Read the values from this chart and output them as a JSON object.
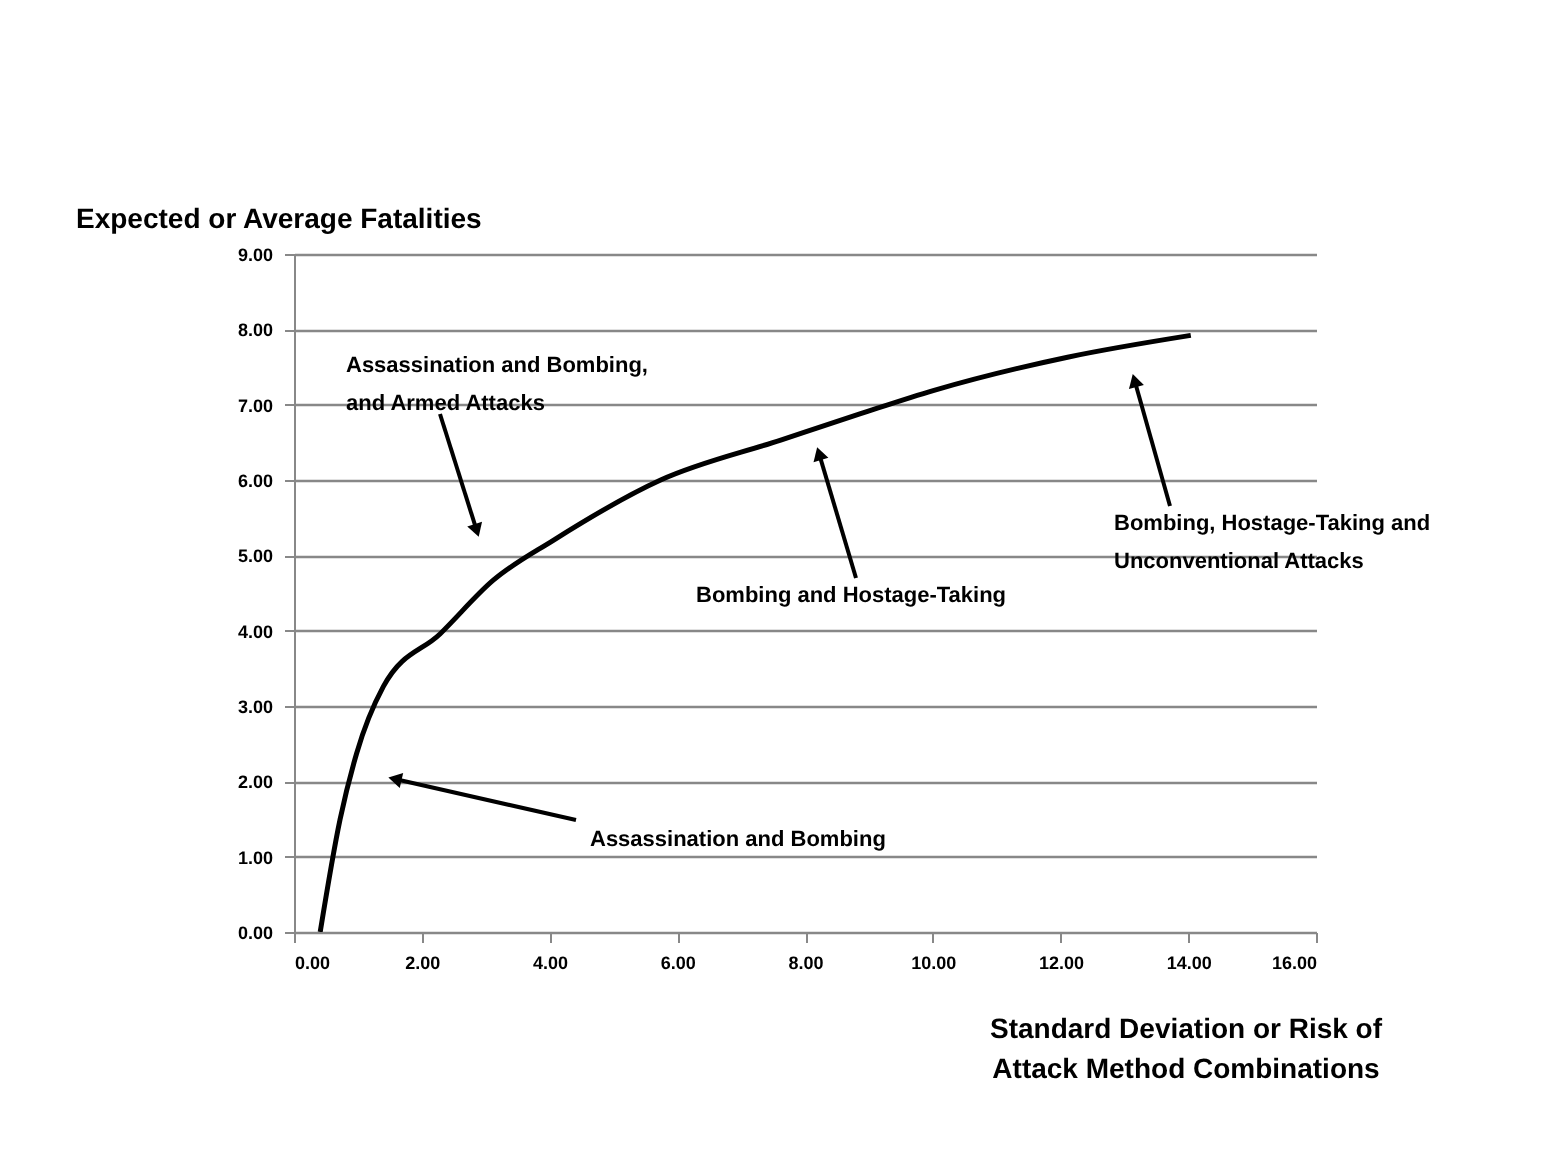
{
  "chart_data": {
    "type": "line",
    "ylabel": "Expected or Average Fatalities",
    "xlabel": "Standard Deviation or Risk of\nAttack Method Combinations",
    "x": [
      0.41,
      0.72,
      0.98,
      1.4,
      2.29,
      3.12,
      4.06,
      5.74,
      7.62,
      8.87,
      10.02,
      12.11,
      14.04
    ],
    "values": [
      0,
      1.49,
      2.37,
      3.26,
      3.96,
      4.67,
      5.2,
      6.0,
      6.53,
      6.88,
      7.19,
      7.63,
      7.92
    ],
    "color": "#000000",
    "xlim": [
      0,
      16
    ],
    "ylim": [
      0,
      9
    ],
    "xticks": [
      {
        "value": 0,
        "label": "0.00"
      },
      {
        "value": 2,
        "label": "2.00"
      },
      {
        "value": 4,
        "label": "4.00"
      },
      {
        "value": 6,
        "label": "6.00"
      },
      {
        "value": 8,
        "label": "8.00"
      },
      {
        "value": 10,
        "label": "10.00"
      },
      {
        "value": 12,
        "label": "12.00"
      },
      {
        "value": 14,
        "label": "14.00"
      },
      {
        "value": 16,
        "label": "16.00"
      }
    ],
    "yticks": [
      {
        "value": 0,
        "label": "0.00"
      },
      {
        "value": 1,
        "label": "1.00"
      },
      {
        "value": 2,
        "label": "2.00"
      },
      {
        "value": 3,
        "label": "3.00"
      },
      {
        "value": 4,
        "label": "4.00"
      },
      {
        "value": 5,
        "label": "5.00"
      },
      {
        "value": 6,
        "label": "6.00"
      },
      {
        "value": 7,
        "label": "7.00"
      },
      {
        "value": 8,
        "label": "8.00"
      },
      {
        "value": 9,
        "label": "9.00"
      }
    ],
    "grid": "y",
    "annotations": [
      {
        "text": "Assassination  and Bombing,\nand Armed Attacks",
        "x": 2.86,
        "y": 5.33
      },
      {
        "text": "Assassination and Bombing",
        "x": 1.58,
        "y": 2.03
      },
      {
        "text": "Bombing and Hostage-Taking",
        "x": 8.22,
        "y": 6.35
      },
      {
        "text": "Bombing, Hostage-Taking and\nUnconventional Attacks",
        "x": 13.16,
        "y": 7.32
      }
    ]
  }
}
